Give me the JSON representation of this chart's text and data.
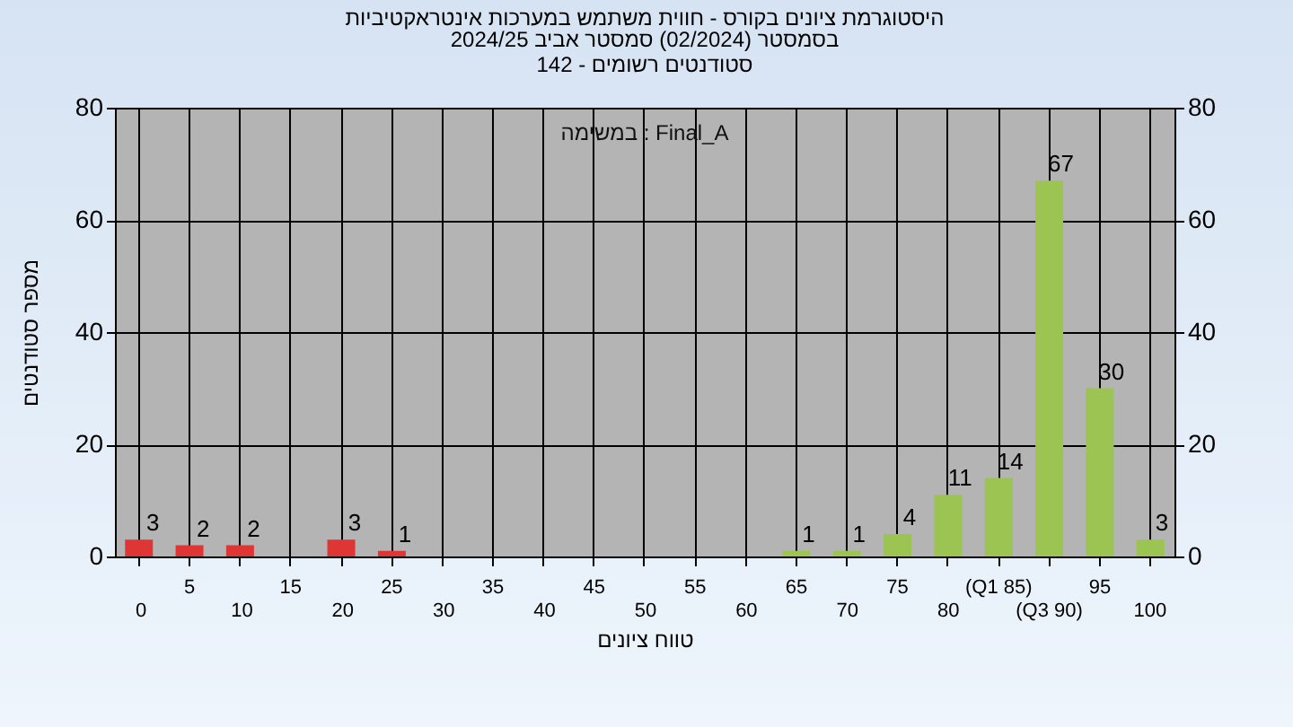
{
  "chart_data": {
    "type": "bar",
    "title": "היסטוגרמת ציונים בקורס - חווית משתמש במערכות אינטראקטיביות",
    "subtitle": "בסמסטר  (02/2024)  סמסטר אביב 2024/25\nסטודנטים רשומים - 142",
    "xlabel": "טווח ציונים",
    "ylabel": "מספר סטודנטים",
    "annotations": [
      "Final_A : במשימה"
    ],
    "categories": [
      "0",
      "5",
      "10",
      "15",
      "20",
      "25",
      "30",
      "35",
      "40",
      "45",
      "50",
      "55",
      "60",
      "65",
      "70",
      "75",
      "80",
      "(Q1 85)",
      "(Q3 90)",
      "95",
      "100"
    ],
    "values": [
      3,
      2,
      2,
      0,
      3,
      1,
      0,
      0,
      0,
      0,
      0,
      0,
      0,
      1,
      1,
      4,
      11,
      14,
      67,
      30,
      3
    ],
    "value_labels": [
      "3",
      "2",
      "2",
      null,
      "3",
      "1",
      null,
      null,
      null,
      null,
      null,
      null,
      null,
      "1",
      "1",
      "4",
      "11",
      "14",
      "67",
      "30",
      "3"
    ],
    "colors": [
      "#e03535",
      "#e03535",
      "#e03535",
      "#e03535",
      "#e03535",
      "#e03535",
      "#9cc452",
      "#9cc452",
      "#9cc452",
      "#9cc452",
      "#9cc452",
      "#9cc452",
      "#9cc452",
      "#9cc452",
      "#9cc452",
      "#9cc452",
      "#9cc452",
      "#9cc452",
      "#9cc452",
      "#9cc452",
      "#9cc452"
    ],
    "ylim": [
      0,
      80
    ],
    "yticks": [
      0,
      20,
      40,
      60,
      80
    ],
    "y2lim": [
      0,
      80
    ],
    "y2ticks": [
      0,
      20,
      40,
      60,
      80
    ],
    "grid": true
  }
}
